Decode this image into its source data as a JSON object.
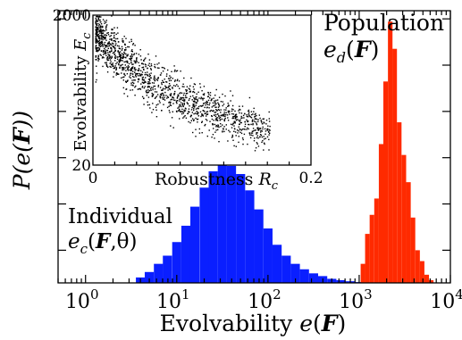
{
  "chart_data": [
    {
      "type": "bar",
      "subtype": "histogram",
      "xlabel": "Evolvability e(F)",
      "ylabel": "P(e(F))",
      "xscale": "log",
      "xlim": [
        0.5,
        10000
      ],
      "x_ticks": [
        {
          "value": 1,
          "label": "10",
          "sup": "0"
        },
        {
          "value": 10,
          "label": "10",
          "sup": "1"
        },
        {
          "value": 100,
          "label": "10",
          "sup": "2"
        },
        {
          "value": 1000,
          "label": "10",
          "sup": "3"
        },
        {
          "value": 10000,
          "label": "10",
          "sup": "4"
        }
      ],
      "ylim": [
        0,
        1.0
      ],
      "y_tick_values": [
        0.12,
        0.29,
        0.46,
        0.63,
        0.8,
        0.97
      ],
      "y_tick_labels_shown": false,
      "series": [
        {
          "name": "Individual",
          "annotation_lines": [
            "Individual",
            "e_c(F,θ)"
          ],
          "color": "#0a1fff",
          "bins_log10_width": 0.1,
          "bins": [
            {
              "x": 4.0,
              "y": 0.02
            },
            {
              "x": 5.0,
              "y": 0.04
            },
            {
              "x": 6.3,
              "y": 0.07
            },
            {
              "x": 7.9,
              "y": 0.1
            },
            {
              "x": 10.0,
              "y": 0.15
            },
            {
              "x": 12.6,
              "y": 0.21
            },
            {
              "x": 15.8,
              "y": 0.28
            },
            {
              "x": 20.0,
              "y": 0.35
            },
            {
              "x": 25.1,
              "y": 0.41
            },
            {
              "x": 31.6,
              "y": 0.44
            },
            {
              "x": 39.8,
              "y": 0.43
            },
            {
              "x": 50.1,
              "y": 0.4
            },
            {
              "x": 63.1,
              "y": 0.34
            },
            {
              "x": 79.4,
              "y": 0.27
            },
            {
              "x": 100.0,
              "y": 0.2
            },
            {
              "x": 125.9,
              "y": 0.14
            },
            {
              "x": 158.5,
              "y": 0.1
            },
            {
              "x": 199.5,
              "y": 0.07
            },
            {
              "x": 251.2,
              "y": 0.05
            },
            {
              "x": 316.2,
              "y": 0.035
            },
            {
              "x": 398.1,
              "y": 0.025
            },
            {
              "x": 501.2,
              "y": 0.015
            },
            {
              "x": 631.0,
              "y": 0.01
            },
            {
              "x": 794.3,
              "y": 0.006
            },
            {
              "x": 1000.0,
              "y": 0.003
            }
          ]
        },
        {
          "name": "Population",
          "annotation_lines": [
            "Population",
            "e_d(F)"
          ],
          "color": "#ff2a00",
          "bins_log10_width": 0.05,
          "bins": [
            {
              "x": 1100,
              "y": 0.07
            },
            {
              "x": 1230,
              "y": 0.18
            },
            {
              "x": 1380,
              "y": 0.25
            },
            {
              "x": 1550,
              "y": 0.31
            },
            {
              "x": 1740,
              "y": 0.51
            },
            {
              "x": 1950,
              "y": 0.74
            },
            {
              "x": 2190,
              "y": 0.96
            },
            {
              "x": 2450,
              "y": 0.86
            },
            {
              "x": 2750,
              "y": 0.59
            },
            {
              "x": 3090,
              "y": 0.47
            },
            {
              "x": 3470,
              "y": 0.37
            },
            {
              "x": 3890,
              "y": 0.24
            },
            {
              "x": 4370,
              "y": 0.12
            },
            {
              "x": 4900,
              "y": 0.08
            },
            {
              "x": 5500,
              "y": 0.03
            },
            {
              "x": 6170,
              "y": 0.01
            }
          ]
        }
      ]
    },
    {
      "type": "scatter",
      "inset": true,
      "xlabel": "Robustness R_c",
      "ylabel": "Evolvability E_c",
      "xlim": [
        0,
        0.2
      ],
      "ylim": [
        20,
        2000
      ],
      "yscale": "log",
      "x_tick_labels": [
        {
          "value": 0,
          "label": "0"
        },
        {
          "value": 0.2,
          "label": "0.2"
        }
      ],
      "y_tick_labels": [
        {
          "value": 20,
          "label": "20"
        },
        {
          "value": 2000,
          "label": "2000"
        }
      ],
      "point_color": "#000000",
      "description_of_points": "about 1500 points; E_c falls from ~1100 near R_c=0 to ~60 near R_c=0.15 along a decaying band",
      "trend": [
        {
          "x": 0.005,
          "y": 1100
        },
        {
          "x": 0.02,
          "y": 600
        },
        {
          "x": 0.04,
          "y": 330
        },
        {
          "x": 0.06,
          "y": 220
        },
        {
          "x": 0.08,
          "y": 160
        },
        {
          "x": 0.1,
          "y": 115
        },
        {
          "x": 0.12,
          "y": 90
        },
        {
          "x": 0.15,
          "y": 65
        }
      ]
    }
  ]
}
